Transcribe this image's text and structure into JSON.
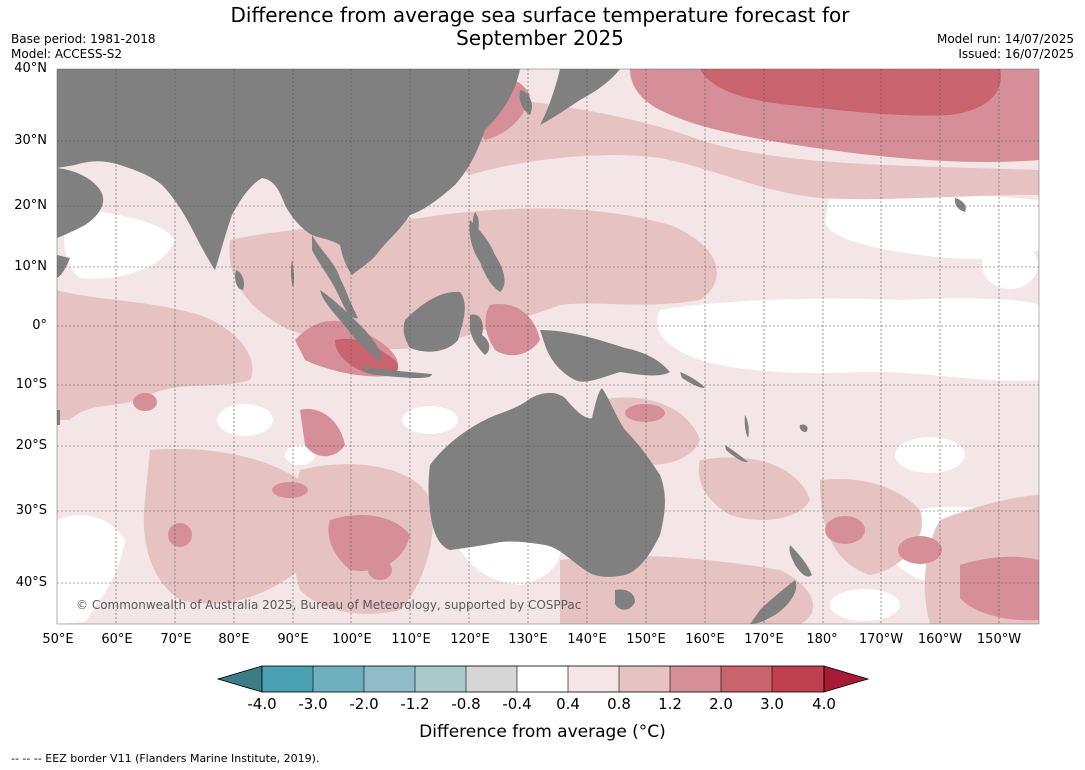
{
  "title": "Difference from average sea surface temperature forecast for September 2025",
  "title_line1": "Difference from average sea surface temperature forecast for",
  "title_line2": "September 2025",
  "base_period": "Base period: 1981-2018",
  "model": "Model: ACCESS-S2",
  "model_run": "Model run: 14/07/2025",
  "issued": "Issued: 16/07/2025",
  "lat_labels": [
    "40°N",
    "30°N",
    "20°N",
    "10°N",
    "0°",
    "10°S",
    "20°S",
    "30°S",
    "40°S"
  ],
  "lon_labels": [
    "50°E",
    "60°E",
    "70°E",
    "80°E",
    "90°E",
    "100°E",
    "110°E",
    "120°E",
    "130°E",
    "140°E",
    "150°E",
    "160°E",
    "170°E",
    "180°",
    "170°W",
    "160°W",
    "150°W"
  ],
  "copyright": "© Commonwealth of Australia 2025, Bureau of Meteorology, supported by COSPPac",
  "colorbar": {
    "ticks": [
      "-4.0",
      "-3.0",
      "-2.0",
      "-1.2",
      "-0.8",
      "-0.4",
      "0.4",
      "0.8",
      "1.2",
      "2.0",
      "3.0",
      "4.0"
    ],
    "colors": [
      "#3a7d86",
      "#4aa1b1",
      "#6eb0bd",
      "#8fbcc8",
      "#a9c9cb",
      "#d6d6d6",
      "#ffffff",
      "#f4e6e6",
      "#e6c3c2",
      "#d68f98",
      "#c9636e",
      "#bf4150",
      "#a81a35"
    ],
    "label": "Difference from average (°C)"
  },
  "colors": {
    "land": "#808080",
    "background_near_zero": "#ffffff",
    "band_04_08": "#f4e6e6",
    "band_08_12": "#e6c3c2",
    "band_12_20": "#d68f98",
    "band_20_30": "#c9636e"
  },
  "footer": "--  --  -- EEZ border V11 (Flanders Marine Institute, 2019)."
}
